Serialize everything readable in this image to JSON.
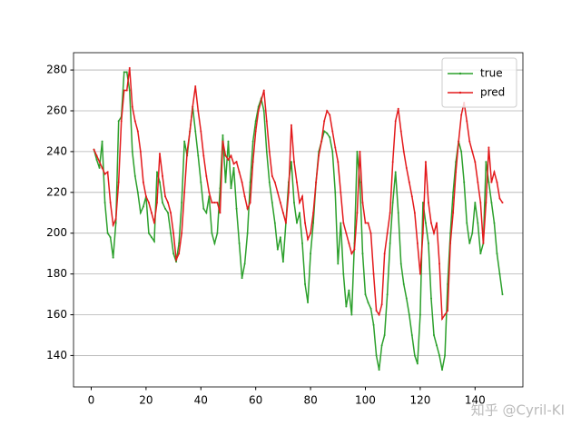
{
  "chart_data": {
    "type": "line",
    "x": [
      1,
      2,
      3,
      4,
      5,
      6,
      7,
      8,
      9,
      10,
      11,
      12,
      13,
      14,
      15,
      16,
      17,
      18,
      19,
      20,
      21,
      22,
      23,
      24,
      25,
      26,
      27,
      28,
      29,
      30,
      31,
      32,
      33,
      34,
      35,
      36,
      37,
      38,
      39,
      40,
      41,
      42,
      43,
      44,
      45,
      46,
      47,
      48,
      49,
      50,
      51,
      52,
      53,
      54,
      55,
      56,
      57,
      58,
      59,
      60,
      61,
      62,
      63,
      64,
      65,
      66,
      67,
      68,
      69,
      70,
      71,
      72,
      73,
      74,
      75,
      76,
      77,
      78,
      79,
      80,
      81,
      82,
      83,
      84,
      85,
      86,
      87,
      88,
      89,
      90,
      91,
      92,
      93,
      94,
      95,
      96,
      97,
      98,
      99,
      100,
      101,
      102,
      103,
      104,
      105,
      106,
      107,
      108,
      109,
      110,
      111,
      112,
      113,
      114,
      115,
      116,
      117,
      118,
      119,
      120,
      121,
      122,
      123,
      124,
      125,
      126,
      127,
      128,
      129,
      130,
      131,
      132,
      133,
      134,
      135,
      136,
      137,
      138,
      139,
      140,
      141,
      142,
      143,
      144,
      145,
      146,
      147,
      148,
      149,
      150
    ],
    "series": [
      {
        "name": "true",
        "color": "#2ca02c",
        "values": [
          241,
          236,
          232,
          245,
          215,
          200,
          198,
          188,
          205,
          255,
          257,
          279,
          279,
          270,
          240,
          228,
          220,
          210,
          213,
          218,
          200,
          198,
          196,
          230,
          225,
          215,
          212,
          210,
          200,
          190,
          186,
          195,
          215,
          245,
          238,
          250,
          262,
          250,
          238,
          225,
          212,
          210,
          218,
          200,
          195,
          200,
          222,
          248,
          225,
          245,
          222,
          232,
          212,
          195,
          178,
          185,
          200,
          225,
          245,
          255,
          262,
          266,
          260,
          240,
          225,
          215,
          205,
          192,
          198,
          186,
          205,
          225,
          235,
          215,
          205,
          210,
          195,
          175,
          166,
          190,
          205,
          225,
          240,
          245,
          250,
          249,
          247,
          240,
          220,
          185,
          205,
          180,
          164,
          172,
          160,
          195,
          240,
          225,
          190,
          170,
          166,
          163,
          155,
          140,
          133,
          145,
          150,
          170,
          195,
          215,
          230,
          210,
          185,
          175,
          168,
          160,
          150,
          140,
          136,
          160,
          215,
          205,
          195,
          168,
          150,
          145,
          140,
          133,
          140,
          175,
          200,
          220,
          235,
          245,
          240,
          225,
          205,
          195,
          200,
          215,
          205,
          190,
          195,
          235,
          225,
          215,
          205,
          190,
          180,
          170
        ]
      },
      {
        "name": "pred",
        "color": "#e31a1c",
        "values": [
          241,
          238,
          235,
          232,
          229,
          230,
          215,
          204,
          207,
          225,
          255,
          270,
          270,
          281,
          262,
          255,
          250,
          240,
          225,
          218,
          215,
          210,
          205,
          215,
          239,
          228,
          218,
          215,
          210,
          200,
          187,
          190,
          200,
          220,
          240,
          250,
          262,
          272,
          260,
          250,
          238,
          228,
          220,
          215,
          215,
          215,
          210,
          245,
          238,
          236,
          238,
          234,
          235,
          230,
          225,
          218,
          212,
          215,
          235,
          250,
          260,
          265,
          270,
          255,
          240,
          228,
          225,
          220,
          215,
          210,
          205,
          220,
          253,
          235,
          225,
          215,
          218,
          205,
          197,
          200,
          210,
          225,
          238,
          245,
          255,
          260,
          258,
          250,
          242,
          235,
          220,
          205,
          200,
          195,
          190,
          192,
          210,
          240,
          215,
          205,
          205,
          200,
          180,
          162,
          160,
          165,
          190,
          200,
          210,
          235,
          255,
          261,
          250,
          240,
          232,
          225,
          218,
          210,
          195,
          180,
          200,
          235,
          215,
          205,
          200,
          205,
          185,
          158,
          160,
          162,
          195,
          210,
          230,
          245,
          258,
          264,
          255,
          245,
          240,
          235,
          225,
          215,
          195,
          215,
          242,
          225,
          230,
          225,
          217,
          215
        ]
      }
    ],
    "xlim": [
      -6.45,
      157.45
    ],
    "ylim": [
      124.6,
      288.5
    ],
    "xticks": [
      0,
      20,
      40,
      60,
      80,
      100,
      120,
      140
    ],
    "yticks": [
      140,
      160,
      180,
      200,
      220,
      240,
      260,
      280
    ],
    "grid": "y",
    "legend": "upper right",
    "watermark": "知乎 @Cyril-KI"
  }
}
